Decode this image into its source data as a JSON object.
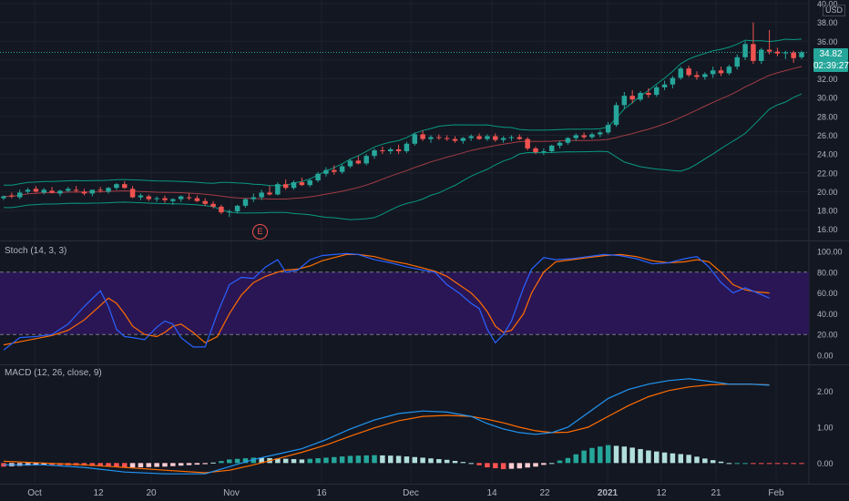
{
  "currency_label": "USD",
  "last_price_label": "34.82",
  "countdown_label": "02:39:27",
  "earnings_marker": "E",
  "colors": {
    "background": "#131722",
    "grid": "#1e222d",
    "text": "#b2b5be",
    "up": "#26a69a",
    "down": "#ef5350",
    "bb_band": "#089981",
    "bb_basis": "#a33c44",
    "stoch_k": "#2962ff",
    "stoch_d": "#ff6d00",
    "stoch_fill": "#2a1655",
    "macd_line": "#2196f3",
    "signal_line": "#ff6d00"
  },
  "chart_data": [
    {
      "type": "candlestick",
      "name": "price",
      "x_tick_labels": [
        "Oct",
        "12",
        "20",
        "Nov",
        "16",
        "Dec",
        "14",
        "22",
        "2021",
        "12",
        "21",
        "Feb"
      ],
      "y_ticks": [
        16,
        18,
        20,
        22,
        24,
        26,
        28,
        30,
        32,
        34,
        36,
        38,
        40
      ],
      "ylim": [
        15,
        40
      ],
      "candles": [
        [
          19.3,
          19.6,
          19.1,
          19.5
        ],
        [
          19.6,
          19.9,
          19.3,
          19.5
        ],
        [
          19.4,
          20.2,
          19.2,
          19.9
        ],
        [
          20.0,
          20.4,
          19.8,
          20.2
        ],
        [
          20.3,
          20.6,
          19.9,
          20.0
        ],
        [
          19.9,
          20.4,
          19.7,
          20.2
        ],
        [
          20.1,
          20.5,
          19.8,
          19.9
        ],
        [
          19.8,
          20.2,
          19.5,
          20.1
        ],
        [
          20.1,
          20.5,
          19.9,
          20.3
        ],
        [
          20.2,
          20.6,
          19.9,
          20.1
        ],
        [
          20.0,
          20.3,
          19.6,
          19.8
        ],
        [
          19.8,
          20.2,
          19.5,
          20.2
        ],
        [
          20.2,
          20.5,
          19.9,
          20.1
        ],
        [
          20.0,
          20.5,
          19.8,
          20.4
        ],
        [
          20.4,
          20.9,
          20.2,
          20.8
        ],
        [
          20.8,
          21.1,
          20.3,
          20.4
        ],
        [
          20.3,
          20.6,
          19.3,
          19.4
        ],
        [
          19.4,
          19.8,
          19.1,
          19.6
        ],
        [
          19.5,
          19.7,
          19.0,
          19.2
        ],
        [
          19.2,
          19.5,
          18.9,
          19.3
        ],
        [
          19.3,
          19.6,
          18.8,
          19.1
        ],
        [
          19.0,
          19.3,
          18.6,
          19.2
        ],
        [
          19.2,
          19.6,
          18.9,
          19.5
        ],
        [
          19.4,
          19.8,
          19.1,
          19.3
        ],
        [
          19.3,
          19.6,
          18.9,
          19.0
        ],
        [
          19.0,
          19.3,
          18.5,
          18.7
        ],
        [
          18.7,
          19.0,
          18.2,
          18.4
        ],
        [
          18.4,
          18.6,
          17.6,
          17.8
        ],
        [
          17.8,
          18.1,
          17.3,
          17.9
        ],
        [
          17.9,
          18.6,
          17.7,
          18.5
        ],
        [
          18.5,
          19.3,
          18.3,
          19.2
        ],
        [
          19.2,
          19.8,
          18.9,
          19.4
        ],
        [
          19.4,
          20.2,
          19.1,
          19.9
        ],
        [
          19.9,
          20.6,
          19.6,
          19.7
        ],
        [
          19.7,
          21.0,
          19.6,
          20.8
        ],
        [
          20.8,
          21.3,
          20.2,
          20.4
        ],
        [
          20.4,
          21.2,
          20.2,
          21.0
        ],
        [
          21.0,
          21.5,
          20.6,
          20.7
        ],
        [
          20.7,
          21.4,
          20.5,
          21.2
        ],
        [
          21.2,
          22.1,
          21.0,
          21.9
        ],
        [
          21.9,
          22.6,
          21.6,
          22.3
        ],
        [
          22.3,
          22.8,
          21.8,
          22.1
        ],
        [
          22.1,
          22.9,
          21.9,
          22.7
        ],
        [
          22.7,
          23.5,
          22.5,
          23.3
        ],
        [
          23.3,
          23.8,
          22.9,
          23.0
        ],
        [
          23.0,
          24.0,
          22.8,
          23.8
        ],
        [
          23.8,
          24.6,
          23.5,
          24.4
        ],
        [
          24.4,
          24.8,
          24.0,
          24.3
        ],
        [
          24.3,
          24.7,
          24.0,
          24.5
        ],
        [
          24.5,
          25.0,
          24.0,
          24.3
        ],
        [
          24.3,
          25.3,
          24.1,
          25.1
        ],
        [
          25.1,
          26.3,
          24.9,
          26.1
        ],
        [
          26.1,
          26.5,
          25.4,
          25.6
        ],
        [
          25.6,
          26.0,
          25.2,
          25.8
        ],
        [
          25.8,
          26.1,
          25.5,
          25.7
        ],
        [
          25.7,
          26.0,
          25.4,
          25.6
        ],
        [
          25.6,
          25.9,
          25.2,
          25.4
        ],
        [
          25.4,
          25.8,
          25.1,
          25.7
        ],
        [
          25.7,
          26.1,
          25.4,
          25.9
        ],
        [
          25.9,
          26.2,
          25.5,
          25.6
        ],
        [
          25.6,
          26.1,
          25.4,
          25.9
        ],
        [
          25.9,
          26.2,
          25.3,
          25.5
        ],
        [
          25.5,
          25.9,
          25.2,
          25.7
        ],
        [
          25.7,
          26.0,
          25.4,
          25.8
        ],
        [
          25.8,
          26.1,
          25.5,
          25.6
        ],
        [
          25.6,
          25.8,
          24.4,
          24.6
        ],
        [
          24.6,
          24.8,
          24.0,
          24.2
        ],
        [
          24.2,
          24.6,
          23.9,
          24.3
        ],
        [
          24.3,
          25.0,
          24.1,
          24.9
        ],
        [
          24.9,
          25.4,
          24.6,
          25.2
        ],
        [
          25.2,
          25.8,
          25.0,
          25.7
        ],
        [
          25.7,
          26.2,
          25.4,
          26.0
        ],
        [
          26.0,
          26.3,
          25.6,
          25.8
        ],
        [
          25.8,
          26.3,
          25.6,
          26.1
        ],
        [
          26.1,
          26.5,
          25.8,
          26.3
        ],
        [
          26.3,
          27.4,
          26.1,
          27.1
        ],
        [
          27.1,
          29.5,
          26.9,
          29.2
        ],
        [
          29.2,
          30.6,
          28.8,
          30.2
        ],
        [
          30.2,
          30.8,
          29.4,
          29.8
        ],
        [
          29.8,
          30.7,
          29.6,
          30.5
        ],
        [
          30.5,
          31.0,
          30.0,
          30.3
        ],
        [
          30.3,
          31.3,
          30.1,
          31.1
        ],
        [
          31.1,
          31.8,
          30.8,
          31.4
        ],
        [
          31.4,
          32.3,
          31.0,
          32.1
        ],
        [
          32.1,
          33.3,
          31.9,
          33.1
        ],
        [
          33.1,
          33.4,
          32.2,
          32.4
        ],
        [
          32.4,
          32.8,
          31.9,
          32.2
        ],
        [
          32.2,
          32.7,
          31.9,
          32.5
        ],
        [
          32.5,
          33.3,
          32.1,
          32.9
        ],
        [
          32.9,
          33.3,
          32.3,
          32.6
        ],
        [
          32.6,
          33.5,
          32.4,
          33.3
        ],
        [
          33.3,
          34.6,
          33.0,
          34.3
        ],
        [
          34.3,
          36.0,
          34.0,
          35.7
        ],
        [
          35.7,
          38.0,
          33.6,
          33.9
        ],
        [
          33.9,
          35.3,
          33.6,
          35.1
        ],
        [
          35.1,
          37.2,
          34.6,
          34.9
        ],
        [
          34.9,
          35.3,
          34.4,
          34.7
        ],
        [
          34.7,
          35.0,
          34.1,
          34.8
        ],
        [
          34.8,
          35.0,
          33.7,
          34.2
        ],
        [
          34.3,
          35.0,
          34.1,
          34.82
        ]
      ]
    },
    {
      "type": "line",
      "name": "stochastic",
      "pane_label": "Stoch (14, 3, 3)",
      "y_ticks": [
        "0.00",
        "20.00",
        "40.00",
        "60.00",
        "80.00",
        "100.00"
      ],
      "ylim": [
        0,
        100
      ],
      "band": [
        20,
        80
      ],
      "k_points": [
        [
          0,
          5
        ],
        [
          4,
          17
        ],
        [
          8,
          18
        ],
        [
          12,
          20
        ],
        [
          16,
          30
        ],
        [
          20,
          47
        ],
        [
          24,
          62
        ],
        [
          26,
          47
        ],
        [
          28,
          25
        ],
        [
          30,
          18
        ],
        [
          32,
          17
        ],
        [
          35,
          15
        ],
        [
          38,
          27
        ],
        [
          40,
          33
        ],
        [
          42,
          30
        ],
        [
          44,
          17
        ],
        [
          47,
          8
        ],
        [
          50,
          8
        ],
        [
          53,
          40
        ],
        [
          56,
          68
        ],
        [
          59,
          75
        ],
        [
          62,
          74
        ],
        [
          65,
          85
        ],
        [
          68,
          92
        ],
        [
          70,
          80
        ],
        [
          73,
          82
        ],
        [
          76,
          92
        ],
        [
          79,
          96
        ],
        [
          82,
          97
        ],
        [
          85,
          98
        ],
        [
          88,
          97
        ],
        [
          92,
          92
        ],
        [
          96,
          89
        ],
        [
          100,
          85
        ],
        [
          104,
          82
        ],
        [
          107,
          80
        ],
        [
          110,
          68
        ],
        [
          113,
          60
        ],
        [
          116,
          50
        ],
        [
          118,
          45
        ],
        [
          120,
          25
        ],
        [
          122,
          12
        ],
        [
          124,
          20
        ],
        [
          126,
          33
        ],
        [
          129,
          65
        ],
        [
          131,
          83
        ],
        [
          134,
          94
        ],
        [
          137,
          92
        ],
        [
          141,
          93
        ],
        [
          145,
          95
        ],
        [
          149,
          97
        ],
        [
          153,
          96
        ],
        [
          157,
          93
        ],
        [
          161,
          88
        ],
        [
          165,
          89
        ],
        [
          169,
          93
        ],
        [
          172,
          95
        ],
        [
          175,
          85
        ],
        [
          178,
          70
        ],
        [
          181,
          60
        ],
        [
          184,
          65
        ],
        [
          187,
          60
        ],
        [
          190,
          55
        ]
      ],
      "d_points": [
        [
          0,
          10
        ],
        [
          4,
          13
        ],
        [
          8,
          16
        ],
        [
          12,
          19
        ],
        [
          16,
          24
        ],
        [
          20,
          34
        ],
        [
          24,
          48
        ],
        [
          26,
          55
        ],
        [
          28,
          50
        ],
        [
          30,
          40
        ],
        [
          32,
          28
        ],
        [
          35,
          20
        ],
        [
          38,
          18
        ],
        [
          40,
          22
        ],
        [
          42,
          28
        ],
        [
          44,
          30
        ],
        [
          47,
          22
        ],
        [
          50,
          12
        ],
        [
          53,
          18
        ],
        [
          56,
          40
        ],
        [
          59,
          58
        ],
        [
          62,
          70
        ],
        [
          65,
          76
        ],
        [
          68,
          80
        ],
        [
          70,
          82
        ],
        [
          73,
          83
        ],
        [
          76,
          86
        ],
        [
          79,
          91
        ],
        [
          82,
          94
        ],
        [
          85,
          97
        ],
        [
          88,
          97
        ],
        [
          92,
          95
        ],
        [
          96,
          91
        ],
        [
          100,
          88
        ],
        [
          104,
          84
        ],
        [
          107,
          81
        ],
        [
          110,
          76
        ],
        [
          113,
          68
        ],
        [
          116,
          60
        ],
        [
          118,
          52
        ],
        [
          120,
          42
        ],
        [
          122,
          28
        ],
        [
          124,
          22
        ],
        [
          126,
          24
        ],
        [
          129,
          40
        ],
        [
          131,
          60
        ],
        [
          134,
          80
        ],
        [
          137,
          90
        ],
        [
          141,
          92
        ],
        [
          145,
          94
        ],
        [
          149,
          96
        ],
        [
          153,
          97
        ],
        [
          157,
          95
        ],
        [
          161,
          91
        ],
        [
          165,
          89
        ],
        [
          169,
          90
        ],
        [
          172,
          92
        ],
        [
          175,
          90
        ],
        [
          178,
          80
        ],
        [
          181,
          68
        ],
        [
          184,
          63
        ],
        [
          187,
          61
        ],
        [
          190,
          60
        ]
      ]
    },
    {
      "type": "line",
      "name": "macd",
      "pane_label": "MACD (12, 26, close, 9)",
      "y_ticks": [
        "0.00",
        "1.00",
        "2.00"
      ],
      "ylim": [
        -0.55,
        2.7
      ],
      "macd_points": [
        [
          0,
          -0.05
        ],
        [
          10,
          -0.05
        ],
        [
          20,
          -0.12
        ],
        [
          30,
          -0.25
        ],
        [
          40,
          -0.3
        ],
        [
          50,
          -0.3
        ],
        [
          56,
          -0.1
        ],
        [
          62,
          0.1
        ],
        [
          68,
          0.25
        ],
        [
          74,
          0.4
        ],
        [
          80,
          0.65
        ],
        [
          86,
          0.95
        ],
        [
          92,
          1.2
        ],
        [
          98,
          1.38
        ],
        [
          104,
          1.45
        ],
        [
          110,
          1.42
        ],
        [
          116,
          1.3
        ],
        [
          120,
          1.1
        ],
        [
          124,
          0.95
        ],
        [
          128,
          0.85
        ],
        [
          132,
          0.8
        ],
        [
          136,
          0.85
        ],
        [
          140,
          1.0
        ],
        [
          145,
          1.4
        ],
        [
          150,
          1.8
        ],
        [
          155,
          2.05
        ],
        [
          160,
          2.2
        ],
        [
          165,
          2.3
        ],
        [
          170,
          2.35
        ],
        [
          175,
          2.28
        ],
        [
          180,
          2.2
        ],
        [
          185,
          2.2
        ],
        [
          190,
          2.17
        ]
      ],
      "signal_points": [
        [
          0,
          0.05
        ],
        [
          10,
          0.0
        ],
        [
          20,
          -0.05
        ],
        [
          30,
          -0.12
        ],
        [
          40,
          -0.2
        ],
        [
          50,
          -0.27
        ],
        [
          56,
          -0.2
        ],
        [
          62,
          -0.05
        ],
        [
          68,
          0.12
        ],
        [
          74,
          0.3
        ],
        [
          80,
          0.5
        ],
        [
          86,
          0.75
        ],
        [
          92,
          0.98
        ],
        [
          98,
          1.18
        ],
        [
          104,
          1.3
        ],
        [
          110,
          1.33
        ],
        [
          116,
          1.3
        ],
        [
          120,
          1.22
        ],
        [
          124,
          1.12
        ],
        [
          128,
          1.0
        ],
        [
          132,
          0.9
        ],
        [
          136,
          0.85
        ],
        [
          140,
          0.86
        ],
        [
          145,
          1.0
        ],
        [
          150,
          1.3
        ],
        [
          155,
          1.6
        ],
        [
          160,
          1.85
        ],
        [
          165,
          2.02
        ],
        [
          170,
          2.12
        ],
        [
          175,
          2.18
        ],
        [
          180,
          2.2
        ],
        [
          185,
          2.2
        ],
        [
          190,
          2.18
        ]
      ]
    }
  ]
}
